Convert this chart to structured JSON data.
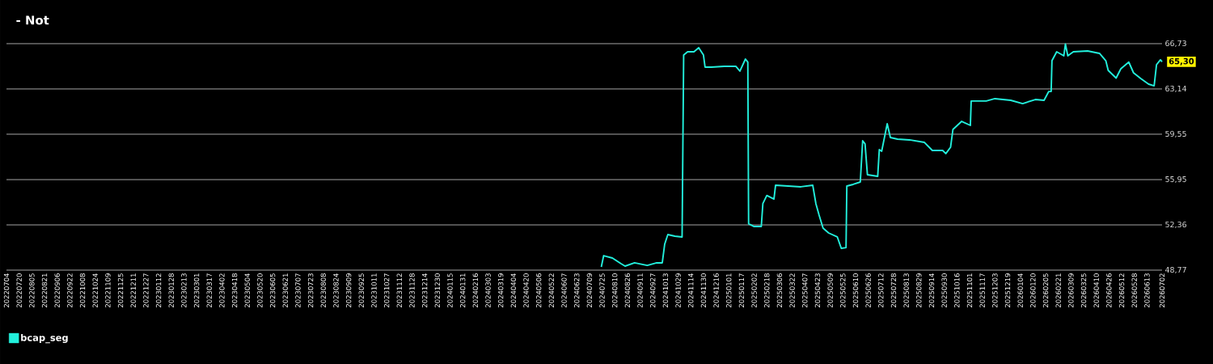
{
  "chart_data": {
    "type": "line",
    "title": "- Not",
    "x": [
      "2024-07-24",
      "2024-07-27",
      "2024-08-07",
      "2024-08-18",
      "2024-08-23",
      "2024-09-04",
      "2024-09-20",
      "2024-10-02",
      "2024-10-09",
      "2024-10-12",
      "2024-10-16",
      "2024-10-25",
      "2024-11-03",
      "2024-11-05",
      "2024-11-10",
      "2024-11-18",
      "2024-11-24",
      "2024-11-30",
      "2024-12-02",
      "2024-12-10",
      "2024-12-26",
      "2025-01-10",
      "2025-01-15",
      "2025-01-22",
      "2025-01-25",
      "2025-01-26",
      "2025-02-02",
      "2025-02-11",
      "2025-02-13",
      "2025-02-18",
      "2025-02-27",
      "2025-03-01",
      "2025-03-17",
      "2025-04-02",
      "2025-04-17",
      "2025-04-21",
      "2025-04-25",
      "2025-04-30",
      "2025-05-07",
      "2025-05-18",
      "2025-05-23",
      "2025-05-29",
      "2025-05-30",
      "2025-06-07",
      "2025-06-16",
      "2025-06-19",
      "2025-06-22",
      "2025-06-25",
      "2025-07-08",
      "2025-07-10",
      "2025-07-13",
      "2025-07-20",
      "2025-07-24",
      "2025-08-02",
      "2025-08-17",
      "2025-09-05",
      "2025-09-15",
      "2025-09-28",
      "2025-10-02",
      "2025-10-08",
      "2025-10-11",
      "2025-10-22",
      "2025-11-02",
      "2025-11-03",
      "2025-11-22",
      "2025-12-03",
      "2025-12-23",
      "2026-01-07",
      "2026-01-23",
      "2026-02-03",
      "2026-02-09",
      "2026-02-12",
      "2026-02-13",
      "2026-02-19",
      "2026-02-28",
      "2026-03-02",
      "2026-03-05",
      "2026-03-12",
      "2026-03-30",
      "2026-04-14",
      "2026-04-22",
      "2026-04-25",
      "2026-05-05",
      "2026-05-11",
      "2026-05-21",
      "2026-05-27",
      "2026-06-05",
      "2026-06-15",
      "2026-06-22",
      "2026-06-25",
      "2026-06-30",
      "2026-07-02"
    ],
    "series": [
      {
        "name": "bcap_seg",
        "color": "#22f0dc",
        "values": [
          49.03,
          49.92,
          49.73,
          49.28,
          49.09,
          49.35,
          49.15,
          49.35,
          49.35,
          50.82,
          51.59,
          51.46,
          51.4,
          65.83,
          66.09,
          66.09,
          66.41,
          65.83,
          64.87,
          64.87,
          64.93,
          64.93,
          64.55,
          65.51,
          65.26,
          52.45,
          52.23,
          52.23,
          54.05,
          54.69,
          54.41,
          55.5,
          55.44,
          55.38,
          55.5,
          54.03,
          53.13,
          52.1,
          51.72,
          51.4,
          50.5,
          50.56,
          55.44,
          55.57,
          55.76,
          59.03,
          58.78,
          56.34,
          56.21,
          58.33,
          58.2,
          60.38,
          59.29,
          59.16,
          59.1,
          58.9,
          58.26,
          58.26,
          58.01,
          58.52,
          59.93,
          60.57,
          60.25,
          62.18,
          62.18,
          62.37,
          62.24,
          61.98,
          62.3,
          62.24,
          62.94,
          62.94,
          65.38,
          66.09,
          65.77,
          66.7,
          65.77,
          66.09,
          66.15,
          65.96,
          65.38,
          64.61,
          64.0,
          64.74,
          65.27,
          64.42,
          63.97,
          63.52,
          63.39,
          65.06,
          65.45,
          65.3
        ]
      }
    ],
    "xlim": [
      "2022-07-04",
      "2026-07-02"
    ],
    "xticks": [
      {
        "value": "2022-07-04",
        "label": "20220704"
      },
      {
        "value": "2022-07-20",
        "label": "20220720"
      },
      {
        "value": "2022-08-05",
        "label": "20220805"
      },
      {
        "value": "2022-08-21",
        "label": "20220821"
      },
      {
        "value": "2022-09-06",
        "label": "20220906"
      },
      {
        "value": "2022-09-22",
        "label": "20220922"
      },
      {
        "value": "2022-10-08",
        "label": "20221008"
      },
      {
        "value": "2022-10-24",
        "label": "20221024"
      },
      {
        "value": "2022-11-09",
        "label": "20221109"
      },
      {
        "value": "2022-11-25",
        "label": "20221125"
      },
      {
        "value": "2022-12-11",
        "label": "20221211"
      },
      {
        "value": "2022-12-27",
        "label": "20221227"
      },
      {
        "value": "2023-01-12",
        "label": "20230112"
      },
      {
        "value": "2023-01-28",
        "label": "20230128"
      },
      {
        "value": "2023-02-13",
        "label": "20230213"
      },
      {
        "value": "2023-03-01",
        "label": "20230301"
      },
      {
        "value": "2023-03-17",
        "label": "20230317"
      },
      {
        "value": "2023-04-02",
        "label": "20230402"
      },
      {
        "value": "2023-04-18",
        "label": "20230418"
      },
      {
        "value": "2023-05-04",
        "label": "20230504"
      },
      {
        "value": "2023-05-20",
        "label": "20230520"
      },
      {
        "value": "2023-06-05",
        "label": "20230605"
      },
      {
        "value": "2023-06-21",
        "label": "20230621"
      },
      {
        "value": "2023-07-07",
        "label": "20230707"
      },
      {
        "value": "2023-07-23",
        "label": "20230723"
      },
      {
        "value": "2023-08-08",
        "label": "20230808"
      },
      {
        "value": "2023-08-24",
        "label": "20230824"
      },
      {
        "value": "2023-09-09",
        "label": "20230909"
      },
      {
        "value": "2023-09-25",
        "label": "20230925"
      },
      {
        "value": "2023-10-11",
        "label": "20231011"
      },
      {
        "value": "2023-10-27",
        "label": "20231027"
      },
      {
        "value": "2023-11-12",
        "label": "20231112"
      },
      {
        "value": "2023-11-28",
        "label": "20231128"
      },
      {
        "value": "2023-12-14",
        "label": "20231214"
      },
      {
        "value": "2023-12-30",
        "label": "20231230"
      },
      {
        "value": "2024-01-15",
        "label": "20240115"
      },
      {
        "value": "2024-01-31",
        "label": "20240131"
      },
      {
        "value": "2024-02-16",
        "label": "20240216"
      },
      {
        "value": "2024-03-03",
        "label": "20240303"
      },
      {
        "value": "2024-03-19",
        "label": "20240319"
      },
      {
        "value": "2024-04-04",
        "label": "20240404"
      },
      {
        "value": "2024-04-20",
        "label": "20240420"
      },
      {
        "value": "2024-05-06",
        "label": "20240506"
      },
      {
        "value": "2024-05-22",
        "label": "20240522"
      },
      {
        "value": "2024-06-07",
        "label": "20240607"
      },
      {
        "value": "2024-06-23",
        "label": "20240623"
      },
      {
        "value": "2024-07-09",
        "label": "20240709"
      },
      {
        "value": "2024-07-25",
        "label": "20240725"
      },
      {
        "value": "2024-08-10",
        "label": "20240810"
      },
      {
        "value": "2024-08-26",
        "label": "20240826"
      },
      {
        "value": "2024-09-11",
        "label": "20240911"
      },
      {
        "value": "2024-09-27",
        "label": "20240927"
      },
      {
        "value": "2024-10-13",
        "label": "20241013"
      },
      {
        "value": "2024-10-29",
        "label": "20241029"
      },
      {
        "value": "2024-11-14",
        "label": "20241114"
      },
      {
        "value": "2024-11-30",
        "label": "20241130"
      },
      {
        "value": "2024-12-16",
        "label": "20241216"
      },
      {
        "value": "2025-01-01",
        "label": "20250101"
      },
      {
        "value": "2025-01-17",
        "label": "20250117"
      },
      {
        "value": "2025-02-02",
        "label": "20250202"
      },
      {
        "value": "2025-02-18",
        "label": "20250218"
      },
      {
        "value": "2025-03-06",
        "label": "20250306"
      },
      {
        "value": "2025-03-22",
        "label": "20250322"
      },
      {
        "value": "2025-04-07",
        "label": "20250407"
      },
      {
        "value": "2025-04-23",
        "label": "20250423"
      },
      {
        "value": "2025-05-09",
        "label": "20250509"
      },
      {
        "value": "2025-05-25",
        "label": "20250525"
      },
      {
        "value": "2025-06-10",
        "label": "20250610"
      },
      {
        "value": "2025-06-26",
        "label": "20250626"
      },
      {
        "value": "2025-07-12",
        "label": "20250712"
      },
      {
        "value": "2025-07-28",
        "label": "20250728"
      },
      {
        "value": "2025-08-13",
        "label": "20250813"
      },
      {
        "value": "2025-08-29",
        "label": "20250829"
      },
      {
        "value": "2025-09-14",
        "label": "20250914"
      },
      {
        "value": "2025-09-30",
        "label": "20250930"
      },
      {
        "value": "2025-10-16",
        "label": "20251016"
      },
      {
        "value": "2025-11-01",
        "label": "20251101"
      },
      {
        "value": "2025-11-17",
        "label": "20251117"
      },
      {
        "value": "2025-12-03",
        "label": "20251203"
      },
      {
        "value": "2025-12-19",
        "label": "20251219"
      },
      {
        "value": "2026-01-04",
        "label": "20260104"
      },
      {
        "value": "2026-01-20",
        "label": "20260120"
      },
      {
        "value": "2026-02-05",
        "label": "20260205"
      },
      {
        "value": "2026-02-21",
        "label": "20260221"
      },
      {
        "value": "2026-03-09",
        "label": "20260309"
      },
      {
        "value": "2026-03-25",
        "label": "20260325"
      },
      {
        "value": "2026-04-10",
        "label": "20260410"
      },
      {
        "value": "2026-04-26",
        "label": "20260426"
      },
      {
        "value": "2026-05-12",
        "label": "20260512"
      },
      {
        "value": "2026-05-28",
        "label": "20260528"
      },
      {
        "value": "2026-06-13",
        "label": "20260613"
      },
      {
        "value": "2026-07-02",
        "label": "20260702"
      }
    ],
    "ylim": [
      48.77,
      66.73
    ],
    "yticks": [
      {
        "value": 48.77,
        "label": "48,77"
      },
      {
        "value": 52.36,
        "label": "52,36"
      },
      {
        "value": 55.95,
        "label": "55,95"
      },
      {
        "value": 59.55,
        "label": "59,55"
      },
      {
        "value": 63.14,
        "label": "63,14"
      },
      {
        "value": 66.73,
        "label": "66,73"
      }
    ],
    "grid": "y",
    "legend": "bottom left",
    "annotations": [
      {
        "text": "65,30",
        "x": "2026-07-02",
        "y": 65.3
      }
    ]
  }
}
